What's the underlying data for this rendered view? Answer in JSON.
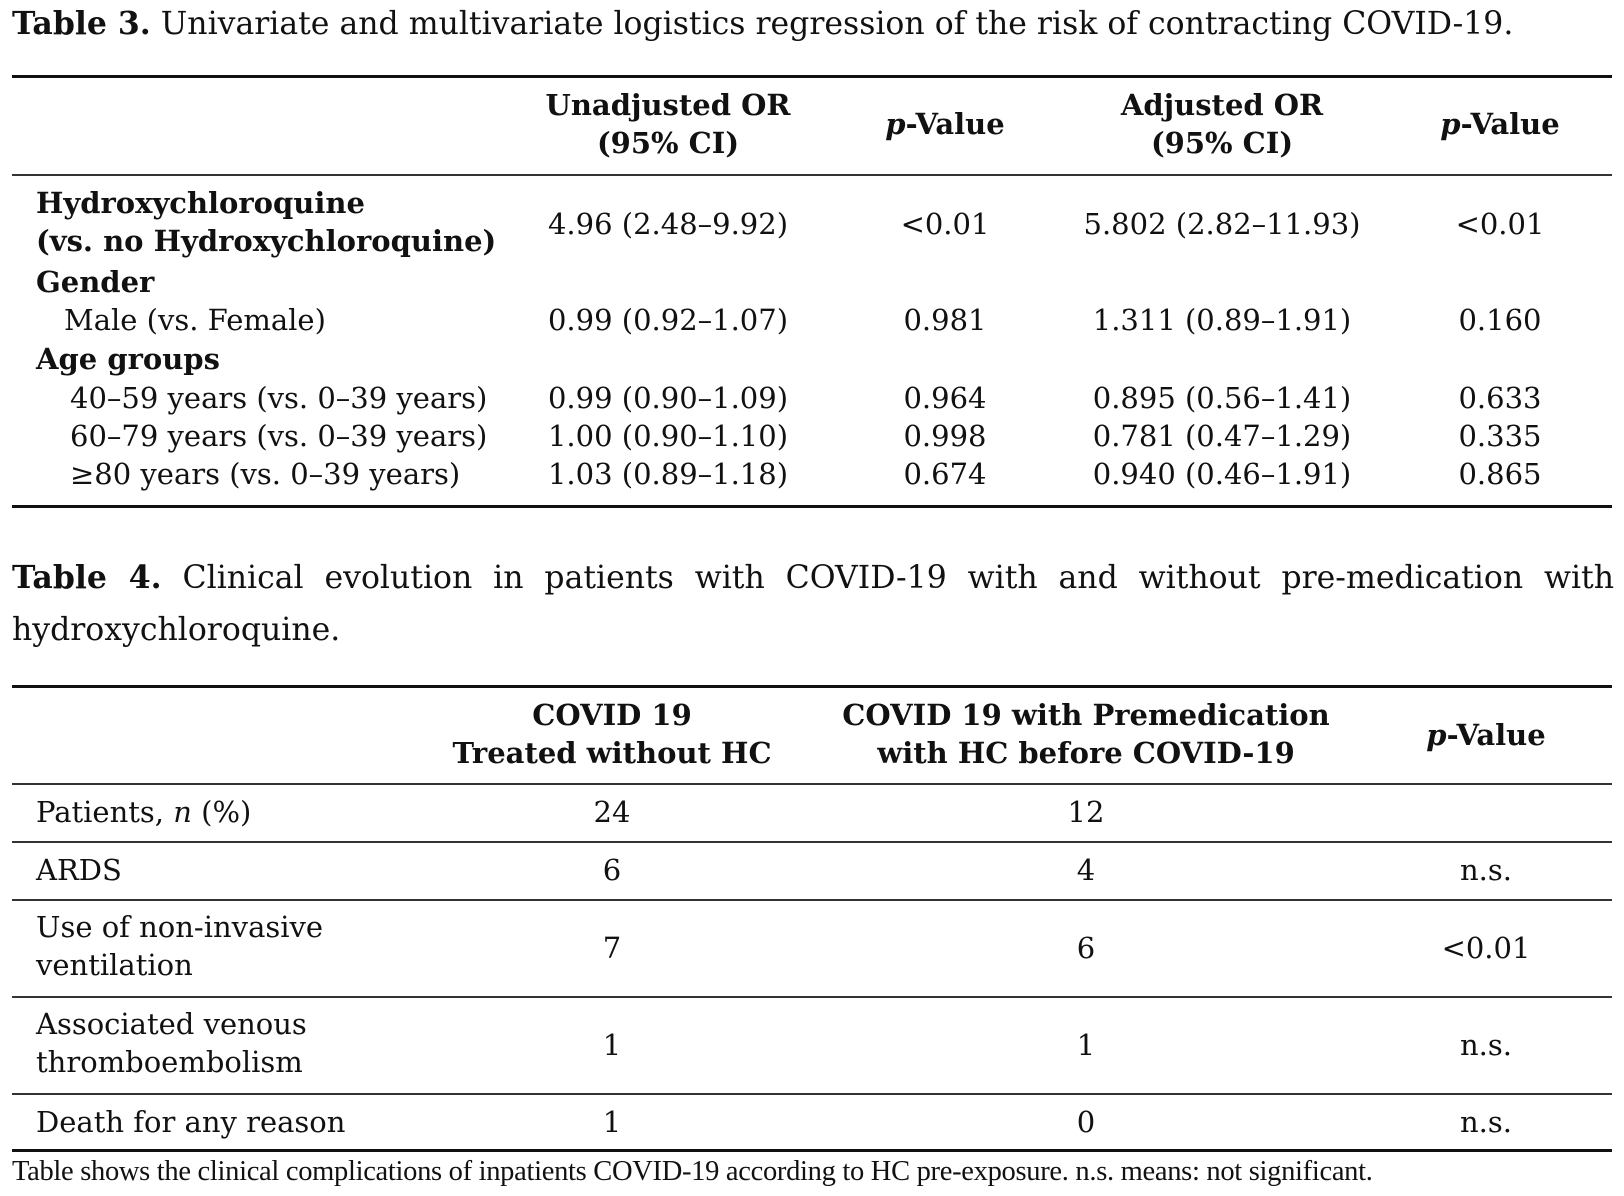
{
  "table3": {
    "caption_label": "Table 3.",
    "caption_text": "Univariate and multivariate logistics regression of the risk of contracting COVID-19.",
    "headers": {
      "unadj_l1": "Unadjusted OR",
      "unadj_l2": "(95% CI)",
      "p1_italic": "p",
      "p1_rest": "-Value",
      "adj_l1": "Adjusted OR",
      "adj_l2": "(95% CI)",
      "p2_italic": "p",
      "p2_rest": "-Value"
    },
    "rows": {
      "hcq_l1": "Hydroxychloroquine",
      "hcq_l2": "(vs. no Hydroxychloroquine)",
      "hcq_unadj": "4.96 (2.48–9.92)",
      "hcq_p1": "<0.01",
      "hcq_adj": "5.802 (2.82–11.93)",
      "hcq_p2": "<0.01",
      "gender": "Gender",
      "male": "Male (vs. Female)",
      "male_unadj": "0.99 (0.92–1.07)",
      "male_p1": "0.981",
      "male_adj": "1.311 (0.89–1.91)",
      "male_p2": "0.160",
      "age_groups": "Age groups",
      "a40": "40–59 years (vs. 0–39 years)",
      "a40_unadj": "0.99 (0.90–1.09)",
      "a40_p1": "0.964",
      "a40_adj": "0.895 (0.56–1.41)",
      "a40_p2": "0.633",
      "a60": "60–79 years (vs. 0–39 years)",
      "a60_unadj": "1.00 (0.90–1.10)",
      "a60_p1": "0.998",
      "a60_adj": "0.781 (0.47–1.29)",
      "a60_p2": "0.335",
      "a80": "≥80 years (vs. 0–39 years)",
      "a80_unadj": "1.03 (0.89–1.18)",
      "a80_p1": "0.674",
      "a80_adj": "0.940 (0.46–1.91)",
      "a80_p2": "0.865"
    }
  },
  "table4": {
    "caption_label": "Table 4.",
    "caption_text": "Clinical evolution in patients with COVID-19 with and without pre-medication with hydroxychloroquine.",
    "headers": {
      "col1_l1": "COVID 19",
      "col1_l2": "Treated without HC",
      "col2_l1": "COVID 19 with Premedication",
      "col2_l2": "with HC before COVID-19",
      "p_italic": "p",
      "p_rest": "-Value"
    },
    "rows": {
      "patients_pre": "Patients, ",
      "patients_n": "n",
      "patients_post": " (%)",
      "patients_c1": "24",
      "patients_c2": "12",
      "ards": "ARDS",
      "ards_c1": "6",
      "ards_c2": "4",
      "ards_p": "n.s.",
      "niv_l1": "Use of non-invasive",
      "niv_l2": "ventilation",
      "niv_c1": "7",
      "niv_c2": "6",
      "niv_p": "<0.01",
      "vte_l1": "Associated venous",
      "vte_l2": "thromboembolism",
      "vte_c1": "1",
      "vte_c2": "1",
      "vte_p": "n.s.",
      "death": "Death for any reason",
      "death_c1": "1",
      "death_c2": "0",
      "death_p": "n.s."
    },
    "footnote": "Table shows the clinical complications of inpatients COVID-19 according to HC pre-exposure. n.s. means: not significant."
  }
}
